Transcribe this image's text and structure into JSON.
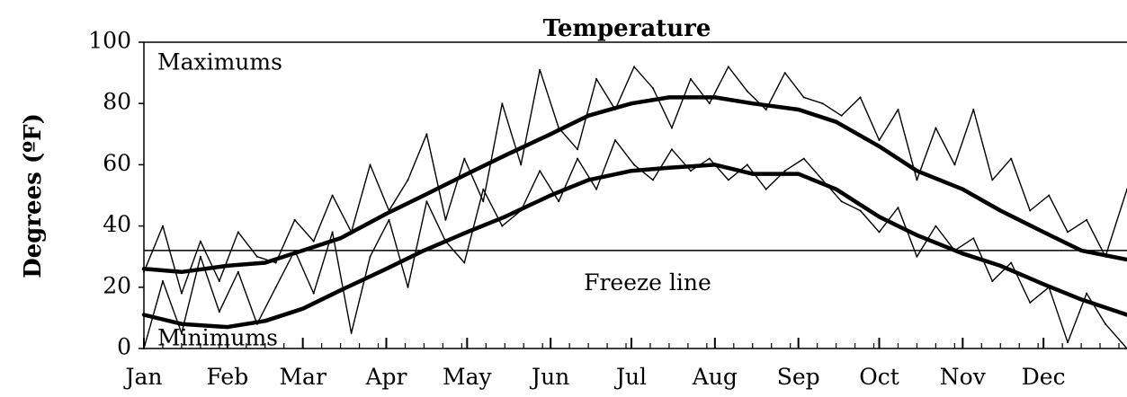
{
  "chart_data": {
    "type": "line",
    "title": "Temperature",
    "ylabel": "Degrees (ºF)",
    "xlabel": "",
    "ylim": [
      0,
      100
    ],
    "yticks": [
      0,
      20,
      40,
      60,
      80,
      100
    ],
    "months": [
      "Jan",
      "Feb",
      "Mar",
      "Apr",
      "May",
      "Jun",
      "Jul",
      "Aug",
      "Sep",
      "Oct",
      "Nov",
      "Dec"
    ],
    "x_unit_days": [
      1,
      32,
      60,
      91,
      121,
      152,
      182,
      213,
      244,
      274,
      305,
      335
    ],
    "xlim": [
      1,
      366
    ],
    "grid": false,
    "annotations": [
      {
        "text": "Maximums",
        "day": 6,
        "y": 93
      },
      {
        "text": "Minimums",
        "day": 6,
        "y": 3
      },
      {
        "text": "Freeze line",
        "day": 188,
        "y": 21
      }
    ],
    "reference_lines": [
      {
        "label": "Freeze line",
        "y": 32
      }
    ],
    "series": [
      {
        "role": "average-max",
        "style": "thick",
        "x": [
          1,
          15,
          32,
          46,
          60,
          74,
          91,
          105,
          121,
          135,
          152,
          166,
          182,
          196,
          213,
          227,
          244,
          258,
          274,
          288,
          305,
          319,
          335,
          349,
          366
        ],
        "values": [
          26,
          25,
          27,
          28,
          32,
          36,
          44,
          50,
          57,
          63,
          70,
          76,
          80,
          82,
          82,
          80,
          78,
          74,
          66,
          58,
          52,
          45,
          38,
          32,
          29
        ]
      },
      {
        "role": "average-min",
        "style": "thick",
        "x": [
          1,
          15,
          32,
          46,
          60,
          74,
          91,
          105,
          121,
          135,
          152,
          166,
          182,
          196,
          213,
          227,
          244,
          258,
          274,
          288,
          305,
          319,
          335,
          349,
          366
        ],
        "values": [
          11,
          8,
          7,
          9,
          13,
          19,
          26,
          32,
          38,
          43,
          50,
          55,
          58,
          59,
          60,
          57,
          57,
          52,
          43,
          37,
          31,
          27,
          21,
          16,
          11
        ]
      },
      {
        "role": "daily-max",
        "style": "thin",
        "x": [
          1,
          8,
          15,
          22,
          29,
          36,
          43,
          50,
          57,
          64,
          71,
          78,
          85,
          92,
          99,
          106,
          113,
          120,
          127,
          134,
          141,
          148,
          155,
          162,
          169,
          176,
          183,
          190,
          197,
          204,
          211,
          218,
          225,
          232,
          239,
          246,
          253,
          260,
          267,
          274,
          281,
          288,
          295,
          302,
          309,
          316,
          323,
          330,
          337,
          344,
          351,
          358,
          366
        ],
        "values": [
          25,
          40,
          18,
          35,
          22,
          38,
          30,
          28,
          42,
          35,
          50,
          38,
          60,
          45,
          55,
          70,
          42,
          62,
          48,
          80,
          60,
          91,
          72,
          65,
          88,
          78,
          92,
          85,
          72,
          88,
          80,
          92,
          84,
          78,
          90,
          82,
          80,
          76,
          82,
          68,
          78,
          55,
          72,
          60,
          78,
          55,
          62,
          45,
          50,
          38,
          42,
          30,
          52
        ]
      },
      {
        "role": "daily-min",
        "style": "thin",
        "x": [
          1,
          8,
          15,
          22,
          29,
          36,
          43,
          50,
          57,
          64,
          71,
          78,
          85,
          92,
          99,
          106,
          113,
          120,
          127,
          134,
          141,
          148,
          155,
          162,
          169,
          176,
          183,
          190,
          197,
          204,
          211,
          218,
          225,
          232,
          239,
          246,
          253,
          260,
          267,
          274,
          281,
          288,
          295,
          302,
          309,
          316,
          323,
          330,
          337,
          344,
          351,
          358,
          366
        ],
        "values": [
          0,
          22,
          5,
          30,
          12,
          25,
          8,
          20,
          32,
          18,
          38,
          5,
          30,
          42,
          20,
          48,
          35,
          28,
          52,
          40,
          45,
          58,
          48,
          62,
          52,
          68,
          60,
          55,
          65,
          58,
          62,
          55,
          60,
          52,
          58,
          62,
          55,
          48,
          45,
          38,
          46,
          30,
          40,
          32,
          36,
          22,
          28,
          15,
          20,
          2,
          18,
          8,
          0
        ]
      }
    ]
  }
}
